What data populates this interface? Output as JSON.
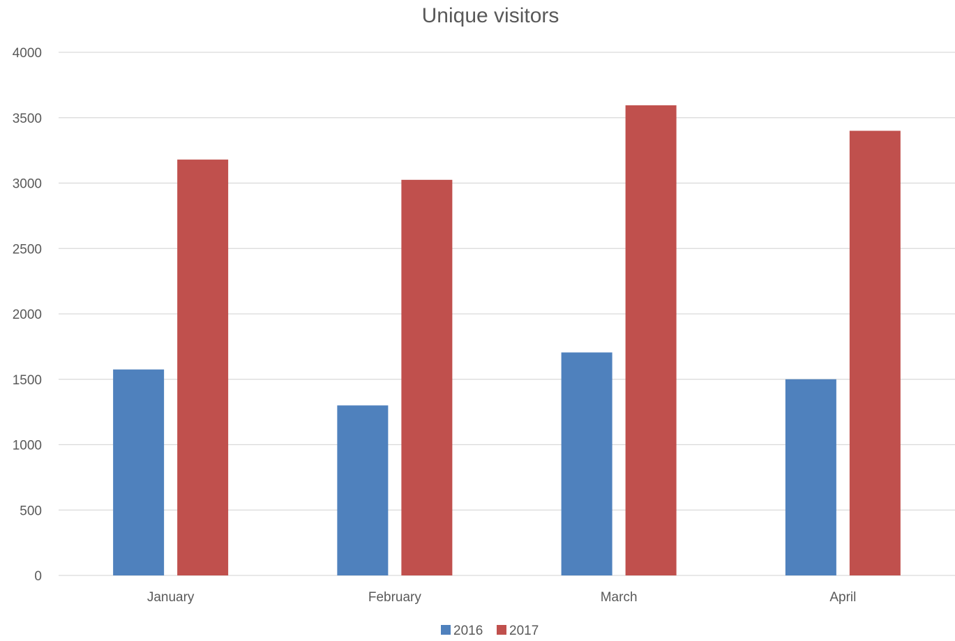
{
  "chart_data": {
    "type": "bar",
    "title": "Unique visitors",
    "xlabel": "",
    "ylabel": "",
    "categories": [
      "January",
      "February",
      "March",
      "April"
    ],
    "series": [
      {
        "name": "2016",
        "color": "#4f81bd",
        "values": [
          1575,
          1300,
          1705,
          1500
        ]
      },
      {
        "name": "2017",
        "color": "#c0504d",
        "values": [
          3180,
          3025,
          3595,
          3400
        ]
      }
    ],
    "ylim": [
      0,
      4000
    ],
    "yticks": [
      "0",
      "500",
      "1000",
      "1500",
      "2000",
      "2500",
      "3000",
      "3500",
      "4000"
    ],
    "grid": true,
    "legend_position": "bottom"
  }
}
